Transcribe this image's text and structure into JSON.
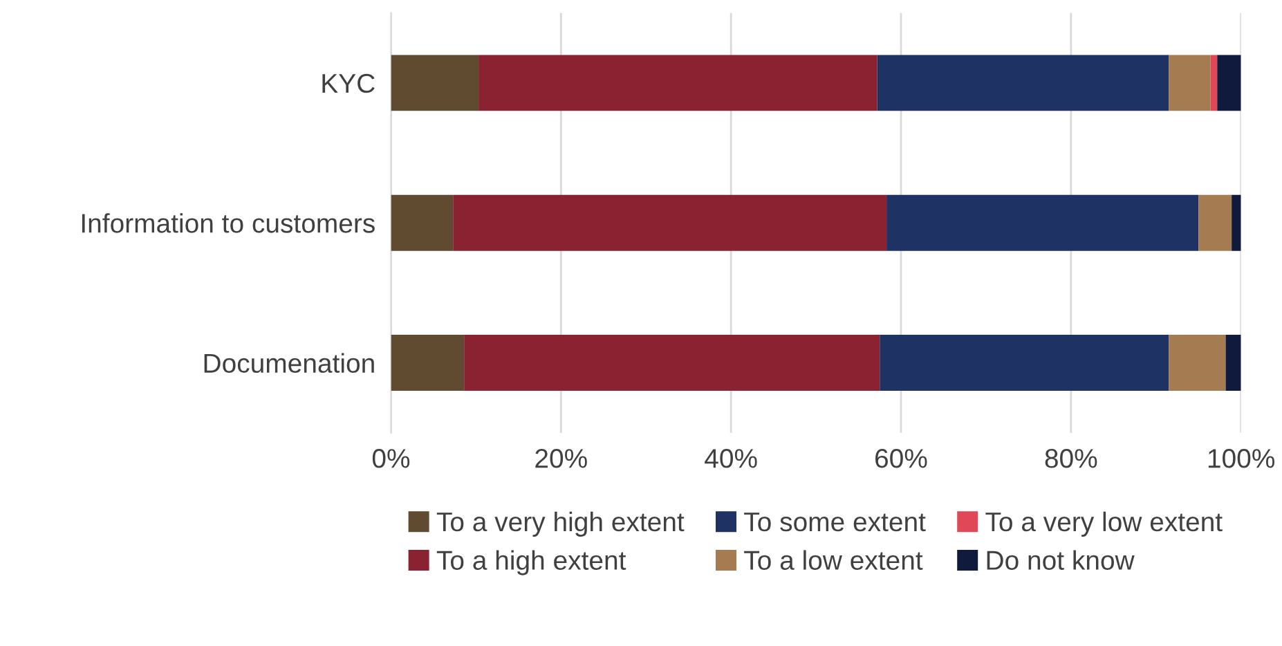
{
  "chart_data": {
    "type": "bar",
    "orientation": "horizontal",
    "stacked": true,
    "categories": [
      "KYC",
      "Information to customers",
      "Documenation"
    ],
    "series": [
      {
        "name": "To a very high extent",
        "color": "#614b30",
        "values": [
          10.3,
          7.3,
          8.6
        ]
      },
      {
        "name": "To a high extent",
        "color": "#8a2232",
        "values": [
          46.9,
          51.0,
          48.9
        ]
      },
      {
        "name": "To some extent",
        "color": "#1f3264",
        "values": [
          34.3,
          36.7,
          34.0
        ]
      },
      {
        "name": "To a low extent",
        "color": "#a57c52",
        "values": [
          4.9,
          3.9,
          6.7
        ]
      },
      {
        "name": "To a very low extent",
        "color": "#e04858",
        "values": [
          0.8,
          0,
          0
        ]
      },
      {
        "name": "Do not know",
        "color": "#0f1a3d",
        "values": [
          2.8,
          1.1,
          1.8
        ]
      }
    ],
    "xlim": [
      0,
      100
    ],
    "xticks": [
      {
        "value": 0,
        "label": "0%"
      },
      {
        "value": 20,
        "label": "20%"
      },
      {
        "value": 40,
        "label": "40%"
      },
      {
        "value": 60,
        "label": "60%"
      },
      {
        "value": 80,
        "label": "80%"
      },
      {
        "value": 100,
        "label": "100%"
      }
    ],
    "grid": "x",
    "legend": "bottom"
  }
}
